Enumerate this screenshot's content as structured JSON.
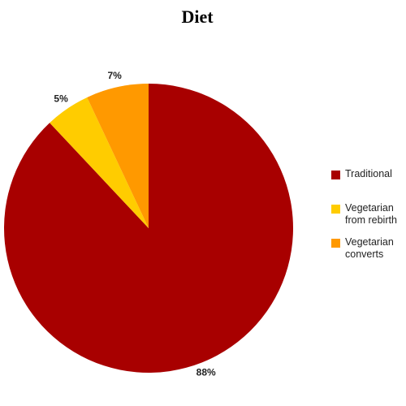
{
  "chart_data": {
    "type": "pie",
    "title": "Diet",
    "categories": [
      "Traditional",
      "Vegetarian from rebirth",
      "Vegetarian converts"
    ],
    "values": [
      88,
      5,
      7
    ],
    "value_labels": [
      "88%",
      "5%",
      "7%"
    ],
    "colors": [
      "#a80000",
      "#ffcc00",
      "#ff9900"
    ],
    "legend": "right"
  }
}
